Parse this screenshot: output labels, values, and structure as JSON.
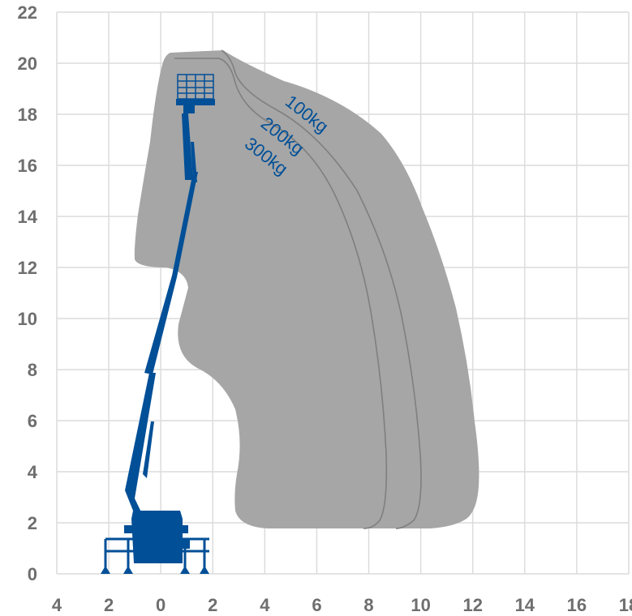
{
  "axes": {
    "x_ticks": [
      "4",
      "2",
      "0",
      "2",
      "4",
      "6",
      "8",
      "10",
      "12",
      "14",
      "16",
      "18"
    ],
    "y_ticks": [
      "0",
      "2",
      "4",
      "6",
      "8",
      "10",
      "12",
      "14",
      "16",
      "18",
      "20",
      "22"
    ],
    "x_range": [
      -4,
      18
    ],
    "y_range": [
      0,
      22
    ]
  },
  "load_zones": [
    {
      "label": "100kg"
    },
    {
      "label": "200kg"
    },
    {
      "label": "300kg"
    }
  ],
  "colors": {
    "grid": "#dcdcdc",
    "envelope": "#a6a6a6",
    "contour": "#7f7f7f",
    "machine": "#004f97",
    "tick_text": "#6e6e6e"
  }
}
